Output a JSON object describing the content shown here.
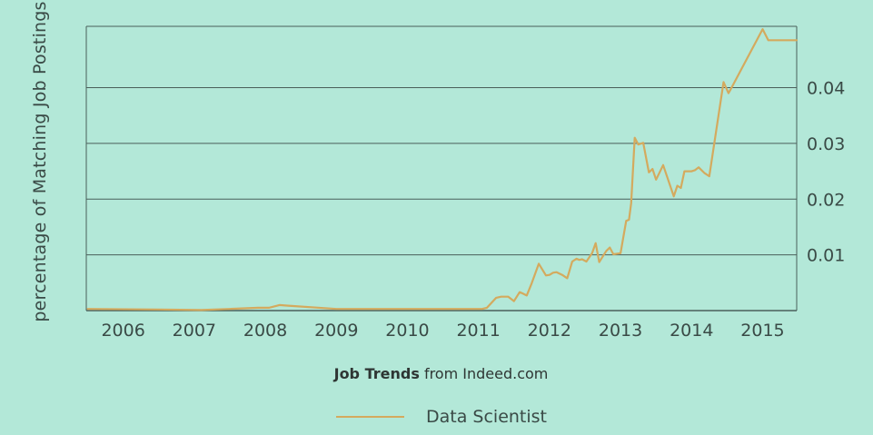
{
  "chart_data": {
    "type": "line",
    "title": "",
    "xlabel": "",
    "ylabel": "percentage of Matching Job Postings",
    "xlim": [
      2005.48,
      2015.48
    ],
    "ylim": [
      0,
      0.051
    ],
    "x_tick_labels": [
      "2006",
      "2007",
      "2008",
      "2009",
      "2010",
      "2011",
      "2012",
      "2013",
      "2014",
      "2015"
    ],
    "y_tick_labels": [
      "0.01",
      "0.02",
      "0.03",
      "0.04"
    ],
    "y_ticks": [
      0.01,
      0.02,
      0.03,
      0.04
    ],
    "y_axis_side": "right",
    "grid": "horizontal",
    "legend_position": "bottom-center",
    "series": [
      {
        "name": "Data Scientist",
        "color": "#d4aa5e",
        "x": [
          2005.5,
          2006.5,
          2007.1,
          2007.5,
          2007.9,
          2008.05,
          2008.2,
          2008.3,
          2009.0,
          2010.0,
          2010.9,
          2011.05,
          2011.12,
          2011.25,
          2011.32,
          2011.42,
          2011.5,
          2011.58,
          2011.62,
          2011.68,
          2011.75,
          2011.85,
          2011.95,
          2012.0,
          2012.05,
          2012.1,
          2012.18,
          2012.25,
          2012.32,
          2012.38,
          2012.42,
          2012.46,
          2012.52,
          2012.6,
          2012.65,
          2012.7,
          2012.8,
          2012.85,
          2012.9,
          2013.0,
          2013.08,
          2013.12,
          2013.15,
          2013.2,
          2013.25,
          2013.32,
          2013.4,
          2013.45,
          2013.5,
          2013.6,
          2013.75,
          2013.8,
          2013.85,
          2013.9,
          2014.0,
          2014.05,
          2014.1,
          2014.18,
          2014.25,
          2014.35,
          2014.45,
          2014.52,
          2014.55,
          2014.58,
          2015.0,
          2015.08,
          2015.2,
          2015.3,
          2015.48
        ],
        "values": [
          0.0003,
          0.0002,
          0.0001,
          0.0003,
          0.0005,
          0.0005,
          0.001,
          0.0009,
          0.0003,
          0.0003,
          0.0003,
          0.0003,
          0.0005,
          0.0023,
          0.0025,
          0.0025,
          0.0017,
          0.0033,
          0.0031,
          0.0027,
          0.0049,
          0.0084,
          0.0063,
          0.0064,
          0.0068,
          0.0069,
          0.0064,
          0.0058,
          0.0088,
          0.0093,
          0.0091,
          0.0092,
          0.0088,
          0.0103,
          0.0121,
          0.0087,
          0.0107,
          0.0113,
          0.0101,
          0.0103,
          0.0161,
          0.0163,
          0.0193,
          0.031,
          0.0298,
          0.0301,
          0.0248,
          0.0254,
          0.0235,
          0.0261,
          0.0205,
          0.0224,
          0.022,
          0.025,
          0.025,
          0.0252,
          0.0257,
          0.0247,
          0.0241,
          0.0325,
          0.041,
          0.039,
          0.0397,
          0.0404,
          0.0505,
          0.0485,
          0.0485,
          0.0485,
          0.0485
        ]
      }
    ],
    "caption_bold": "Job Trends",
    "caption_rest": "from Indeed.com"
  }
}
